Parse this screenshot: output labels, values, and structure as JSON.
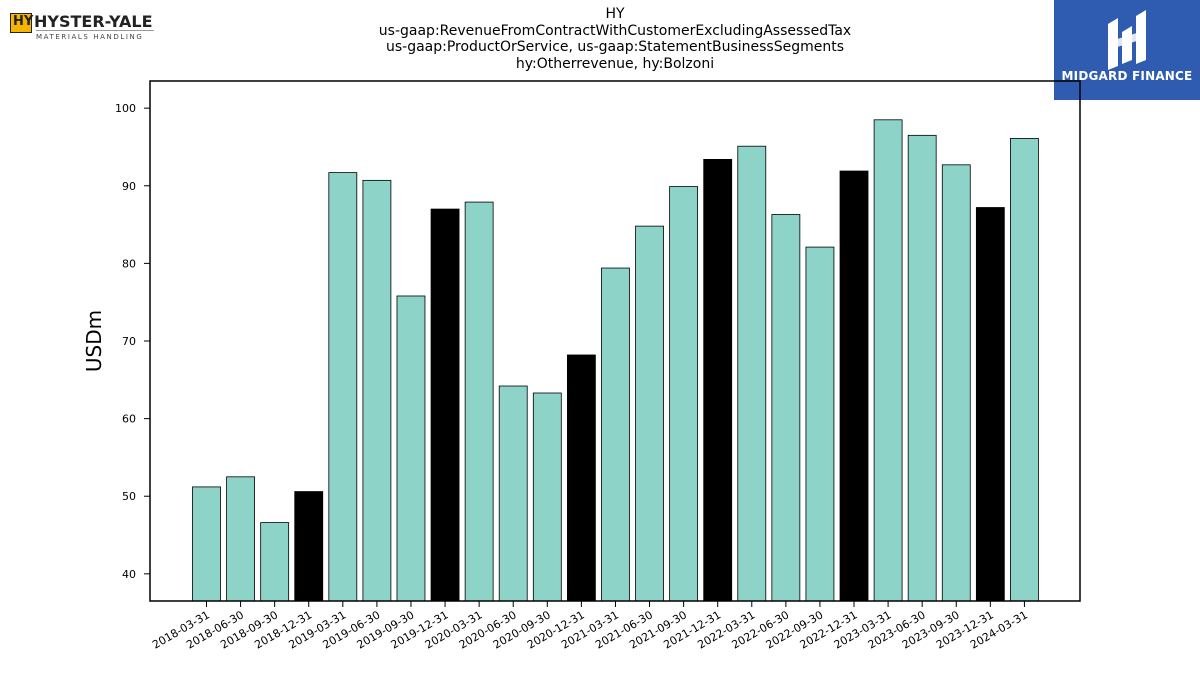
{
  "header": {
    "left_logo": {
      "brand": "HYSTER-YALE",
      "sub": "MATERIALS HANDLING",
      "mark": "HY"
    },
    "right_logo": {
      "brand": "MIDGARD FINANCE",
      "icon": "midgard-logo-icon"
    },
    "title_lines": [
      "HY",
      "us-gaap:RevenueFromContractWithCustomerExcludingAssessedTax",
      "us-gaap:ProductOrService, us-gaap:StatementBusinessSegments",
      "hy:Otherrevenue, hy:Bolzoni"
    ]
  },
  "chart_data": {
    "type": "bar",
    "title": "HY\nus-gaap:RevenueFromContractWithCustomerExcludingAssessedTax\nus-gaap:ProductOrService, us-gaap:StatementBusinessSegments\nhy:Otherrevenue, hy:Bolzoni",
    "xlabel": "",
    "ylabel": "USDm",
    "ylim": [
      36.5,
      103.5
    ],
    "yticks": [
      40,
      50,
      60,
      70,
      80,
      90,
      100
    ],
    "grid": false,
    "colors": {
      "quarter": "#8dd3c7",
      "year_end": "#000000",
      "edge": "#000000"
    },
    "categories": [
      "2018-03-31",
      "2018-06-30",
      "2018-09-30",
      "2018-12-31",
      "2019-03-31",
      "2019-06-30",
      "2019-09-30",
      "2019-12-31",
      "2020-03-31",
      "2020-06-30",
      "2020-09-30",
      "2020-12-31",
      "2021-03-31",
      "2021-06-30",
      "2021-09-30",
      "2021-12-31",
      "2022-03-31",
      "2022-06-30",
      "2022-09-30",
      "2022-12-31",
      "2023-03-31",
      "2023-06-30",
      "2023-09-30",
      "2023-12-31",
      "2024-03-31"
    ],
    "values": [
      51.2,
      52.5,
      46.6,
      50.6,
      91.7,
      90.7,
      75.8,
      87.0,
      87.9,
      64.2,
      63.3,
      68.2,
      79.4,
      84.8,
      89.9,
      93.4,
      95.1,
      86.3,
      82.1,
      91.9,
      98.5,
      96.5,
      92.7,
      87.2,
      96.1
    ]
  }
}
